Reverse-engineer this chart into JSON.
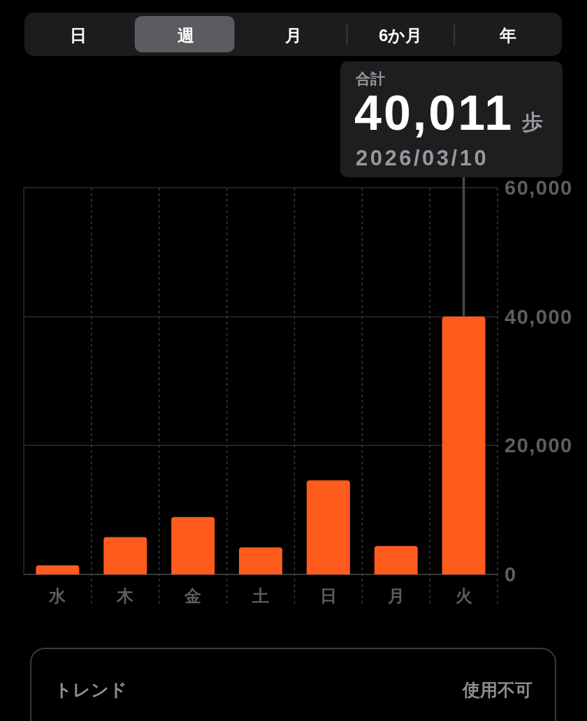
{
  "chart_data": [
    {
      "type": "other",
      "categories": [
        "日",
        "週",
        "月",
        "6か月",
        "年"
      ],
      "colors": [
        "#1c1c1e",
        "#5c5c60",
        "#1c1c1e",
        "#1c1c1e",
        "#1c1c1e"
      ]
    },
    {
      "type": "bar",
      "categories": [
        "水",
        "木",
        "金",
        "土",
        "日",
        "月",
        "火"
      ],
      "values": [
        1400,
        5800,
        8900,
        4200,
        14600,
        4400,
        40011
      ],
      "color": "#fe5b1d",
      "ylim": [
        0,
        60000
      ],
      "yticks": [
        0,
        {
          "value": 20000,
          "label": "20,000"
        },
        {
          "value": 40000,
          "label": "40,000"
        },
        {
          "value": 60000,
          "label": "60,000"
        }
      ],
      "grid": true,
      "annotations": [
        "合計",
        {
          "text": "40,011",
          "x": "火",
          "y": 40011
        },
        "歩",
        "2026/03/10"
      ]
    },
    {
      "type": "other",
      "annotations": [
        "トレンド",
        "使用不可"
      ]
    }
  ]
}
